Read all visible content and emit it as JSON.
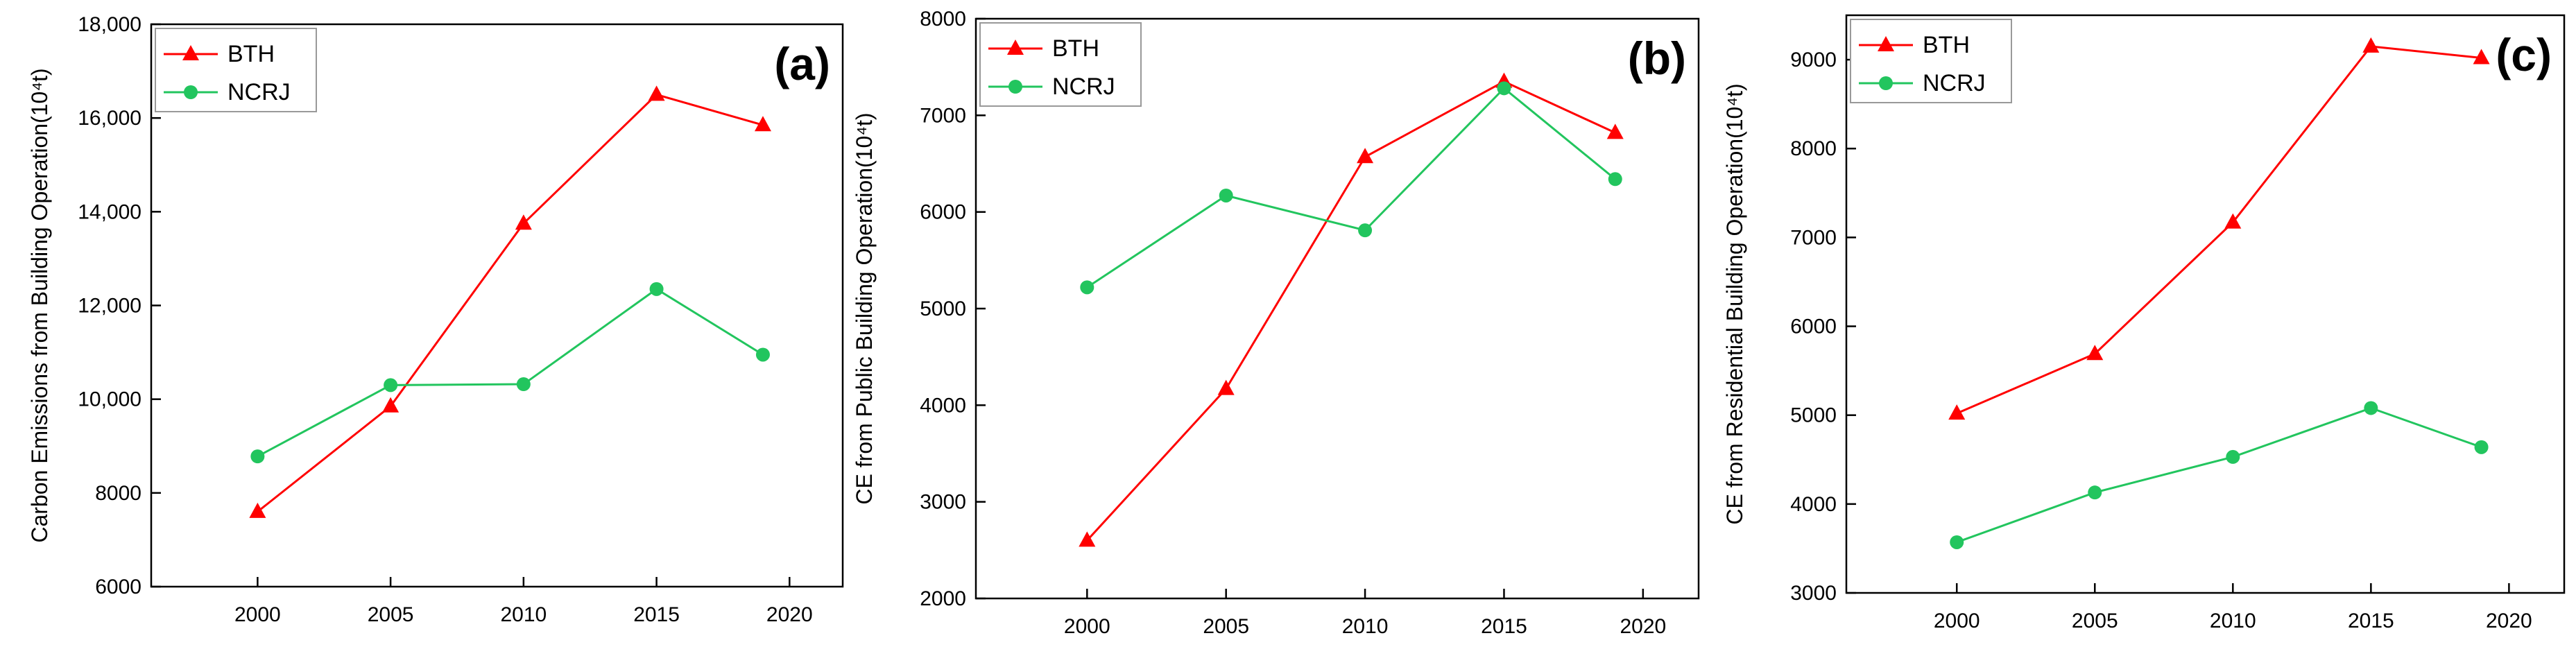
{
  "chart_data": [
    {
      "type": "line",
      "panel_label": "(a)",
      "ylabel": "Carbon Emissions from Building Operation(10⁴t)",
      "xlabel": "",
      "x": [
        2000,
        2005,
        2010,
        2015,
        2019
      ],
      "xlim": [
        1996,
        2022
      ],
      "ylim": [
        6000,
        18000
      ],
      "xticks": [
        2000,
        2005,
        2010,
        2015,
        2020
      ],
      "yticks": [
        6000,
        8000,
        10000,
        12000,
        14000,
        16000,
        18000
      ],
      "ytick_labels": [
        "6000",
        "8000",
        "10,000",
        "12,000",
        "14,000",
        "16,000",
        "18,000"
      ],
      "legend_position": "top-left",
      "grid": false,
      "series": [
        {
          "name": "BTH",
          "color": "#ff0000",
          "marker": "triangle",
          "values": [
            7600,
            9850,
            13750,
            16500,
            15850
          ]
        },
        {
          "name": "NCRJ",
          "color": "#22c55e",
          "marker": "circle",
          "values": [
            8780,
            10300,
            10320,
            12350,
            10950
          ]
        }
      ]
    },
    {
      "type": "line",
      "panel_label": "(b)",
      "ylabel": "CE from Public Building Operation(10⁴t)",
      "xlabel": "",
      "x": [
        2000,
        2005,
        2010,
        2015,
        2019
      ],
      "xlim": [
        1996,
        2022
      ],
      "ylim": [
        2000,
        8000
      ],
      "xticks": [
        2000,
        2005,
        2010,
        2015,
        2020
      ],
      "yticks": [
        2000,
        3000,
        4000,
        5000,
        6000,
        7000,
        8000
      ],
      "ytick_labels": [
        "2000",
        "3000",
        "4000",
        "5000",
        "6000",
        "7000",
        "8000"
      ],
      "legend_position": "top-left",
      "grid": false,
      "series": [
        {
          "name": "BTH",
          "color": "#ff0000",
          "marker": "triangle",
          "values": [
            2600,
            4170,
            6570,
            7350,
            6820
          ]
        },
        {
          "name": "NCRJ",
          "color": "#22c55e",
          "marker": "circle",
          "values": [
            5220,
            6170,
            5810,
            7280,
            6340
          ]
        }
      ]
    },
    {
      "type": "line",
      "panel_label": "(c)",
      "ylabel": "CE from Residential Building Operation(10⁴t)",
      "xlabel": "",
      "x": [
        2000,
        2005,
        2010,
        2015,
        2019
      ],
      "xlim": [
        1996,
        2022
      ],
      "ylim": [
        3000,
        9500
      ],
      "xticks": [
        2000,
        2005,
        2010,
        2015,
        2020
      ],
      "yticks": [
        3000,
        4000,
        5000,
        6000,
        7000,
        8000,
        9000
      ],
      "ytick_labels": [
        "3000",
        "4000",
        "5000",
        "6000",
        "7000",
        "8000",
        "9000"
      ],
      "legend_position": "top-left",
      "grid": false,
      "series": [
        {
          "name": "BTH",
          "color": "#ff0000",
          "marker": "triangle",
          "values": [
            5020,
            5690,
            7170,
            9150,
            9020
          ]
        },
        {
          "name": "NCRJ",
          "color": "#22c55e",
          "marker": "circle",
          "values": [
            3570,
            4130,
            4530,
            5080,
            4640
          ]
        }
      ]
    }
  ]
}
